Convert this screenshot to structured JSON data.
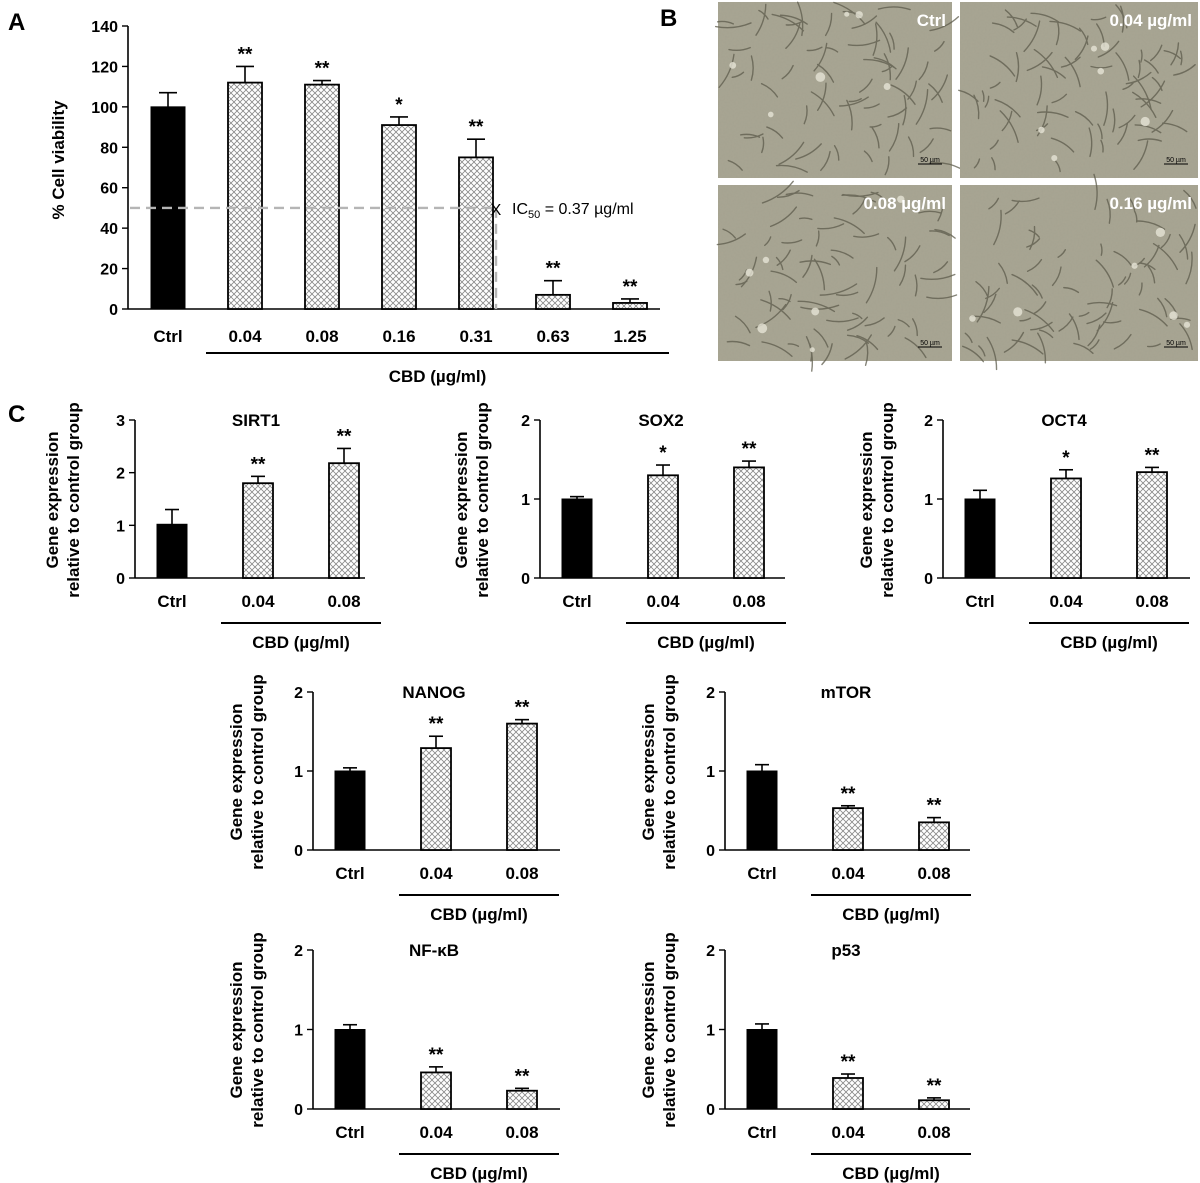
{
  "panels": {
    "A": {
      "letter": "A",
      "chart_data": {
        "type": "bar",
        "categories": [
          "Ctrl",
          "0.04",
          "0.08",
          "0.16",
          "0.31",
          "0.63",
          "1.25"
        ],
        "values": [
          100,
          112,
          111,
          91,
          75,
          7,
          3
        ],
        "errors": [
          7,
          8,
          2,
          4,
          9,
          7,
          2
        ],
        "significance": [
          "",
          "**",
          "**",
          "*",
          "**",
          "**",
          "**"
        ],
        "bar_fill": [
          "solid",
          "hatched",
          "hatched",
          "hatched",
          "hatched",
          "hatched",
          "hatched"
        ],
        "ylabel": "% Cell viability",
        "xlabel": "CBD (µg/ml)",
        "ylim": [
          0,
          140
        ],
        "yticks": [
          0,
          20,
          40,
          60,
          80,
          100,
          120,
          140
        ],
        "ytick_labels": [
          "0",
          "20",
          "40",
          "60",
          "80",
          "100",
          "120",
          "140"
        ],
        "annotation": {
          "marker": "X",
          "prefix": "IC",
          "subscript": "50",
          "suffix": " = 0.37 µg/ml",
          "y": 50,
          "x": 0.37
        }
      }
    },
    "B": {
      "letter": "B",
      "images": [
        {
          "label": "Ctrl",
          "scale_bar": "50 µm"
        },
        {
          "label": "0.04 µg/ml",
          "scale_bar": "50 µm"
        },
        {
          "label": "0.08 µg/ml",
          "scale_bar": "50 µm"
        },
        {
          "label": "0.16 µg/ml",
          "scale_bar": "50 µm"
        }
      ]
    },
    "C": {
      "letter": "C",
      "chart_data": [
        {
          "type": "bar",
          "title": "SIRT1",
          "categories": [
            "Ctrl",
            "0.04",
            "0.08"
          ],
          "values": [
            1.02,
            1.8,
            2.18
          ],
          "errors": [
            0.28,
            0.13,
            0.28
          ],
          "significance": [
            "",
            "**",
            "**"
          ],
          "ylim": [
            0,
            3
          ],
          "yticks": [
            0,
            1,
            2,
            3
          ],
          "ytick_labels": [
            "0",
            "1",
            "2",
            "3"
          ],
          "ylabel": "Gene expression relative to control group",
          "xlabel": "CBD (µg/ml)"
        },
        {
          "type": "bar",
          "title": "SOX2",
          "categories": [
            "Ctrl",
            "0.04",
            "0.08"
          ],
          "values": [
            1.0,
            1.3,
            1.4
          ],
          "errors": [
            0.03,
            0.13,
            0.08
          ],
          "significance": [
            "",
            "*",
            "**"
          ],
          "ylim": [
            0,
            2
          ],
          "yticks": [
            0,
            1,
            2
          ],
          "ytick_labels": [
            "0",
            "1",
            "2"
          ],
          "ylabel": "Gene expression relative to control group",
          "xlabel": "CBD (µg/ml)"
        },
        {
          "type": "bar",
          "title": "OCT4",
          "categories": [
            "Ctrl",
            "0.04",
            "0.08"
          ],
          "values": [
            1.0,
            1.26,
            1.34
          ],
          "errors": [
            0.11,
            0.11,
            0.06
          ],
          "significance": [
            "",
            "*",
            "**"
          ],
          "ylim": [
            0,
            2
          ],
          "yticks": [
            0,
            1,
            2
          ],
          "ytick_labels": [
            "0",
            "1",
            "2"
          ],
          "ylabel": "Gene expression relative to control group",
          "xlabel": "CBD (µg/ml)"
        },
        {
          "type": "bar",
          "title": "NANOG",
          "categories": [
            "Ctrl",
            "0.04",
            "0.08"
          ],
          "values": [
            1.0,
            1.29,
            1.6
          ],
          "errors": [
            0.04,
            0.15,
            0.05
          ],
          "significance": [
            "",
            "**",
            "**"
          ],
          "ylim": [
            0,
            2
          ],
          "yticks": [
            0,
            1,
            2
          ],
          "ytick_labels": [
            "0",
            "1",
            "2"
          ],
          "ylabel": "Gene expression relative to control group",
          "xlabel": "CBD (µg/ml)"
        },
        {
          "type": "bar",
          "title": "mTOR",
          "categories": [
            "Ctrl",
            "0.04",
            "0.08"
          ],
          "values": [
            1.0,
            0.53,
            0.35
          ],
          "errors": [
            0.08,
            0.03,
            0.06
          ],
          "significance": [
            "",
            "**",
            "**"
          ],
          "ylim": [
            0,
            2
          ],
          "yticks": [
            0,
            1,
            2
          ],
          "ytick_labels": [
            "0",
            "1",
            "2"
          ],
          "ylabel": "Gene expression relative to control group",
          "xlabel": "CBD (µg/ml)"
        },
        {
          "type": "bar",
          "title": "NF-κB",
          "categories": [
            "Ctrl",
            "0.04",
            "0.08"
          ],
          "values": [
            1.0,
            0.46,
            0.23
          ],
          "errors": [
            0.06,
            0.07,
            0.03
          ],
          "significance": [
            "",
            "**",
            "**"
          ],
          "ylim": [
            0,
            2
          ],
          "yticks": [
            0,
            1,
            2
          ],
          "ytick_labels": [
            "0",
            "1",
            "2"
          ],
          "ylabel": "Gene expression relative to control group",
          "xlabel": "CBD (µg/ml)"
        },
        {
          "type": "bar",
          "title": "p53",
          "categories": [
            "Ctrl",
            "0.04",
            "0.08"
          ],
          "values": [
            1.0,
            0.39,
            0.11
          ],
          "errors": [
            0.07,
            0.05,
            0.03
          ],
          "significance": [
            "",
            "**",
            "**"
          ],
          "ylim": [
            0,
            2
          ],
          "yticks": [
            0,
            1,
            2
          ],
          "ytick_labels": [
            "0",
            "1",
            "2"
          ],
          "ylabel": "Gene expression relative to control group",
          "xlabel": "CBD (µg/ml)"
        }
      ]
    }
  },
  "colors": {
    "solid_bar": "#000000",
    "hatch": "#8a8a8a",
    "dashed_line": "#b5b5b5",
    "micrograph_base": "#a9a692"
  }
}
